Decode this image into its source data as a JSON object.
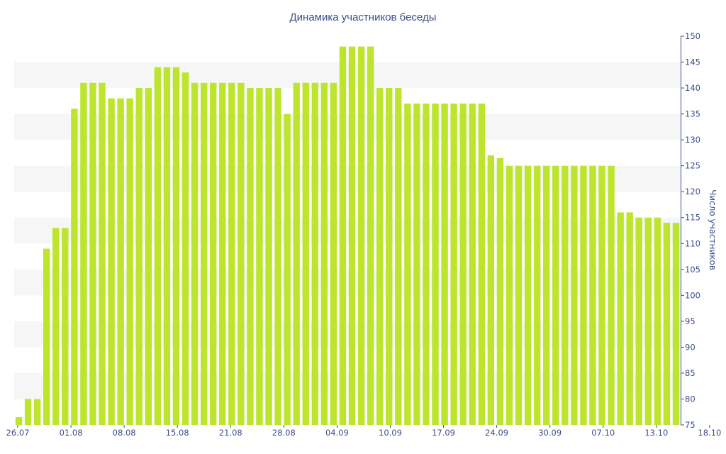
{
  "chart_data": {
    "type": "bar",
    "title": "Динамика участников беседы",
    "xlabel": "",
    "ylabel": "Число участников",
    "ylim": [
      75,
      150
    ],
    "yticks": [
      75,
      80,
      85,
      90,
      95,
      100,
      105,
      110,
      115,
      120,
      125,
      130,
      135,
      140,
      145,
      150
    ],
    "y_axis_position": "right",
    "grid": "alternating horizontal bands",
    "legend": "none",
    "colors": {
      "bar": "#bde52d",
      "text": "#3b4f8a",
      "band": "#f6f6f6",
      "axis": "#3b4f8a"
    },
    "x_tick_labels": [
      "26.07",
      "01.08",
      "08.08",
      "15.08",
      "21.08",
      "28.08",
      "04.09",
      "10.09",
      "17.09",
      "24.09",
      "30.09",
      "07.10",
      "13.10",
      "18.10"
    ],
    "values": [
      76.5,
      80,
      80,
      109,
      113,
      113,
      136,
      141,
      141,
      141,
      138,
      138,
      138,
      140,
      140,
      144,
      144,
      144,
      143,
      141,
      141,
      141,
      141,
      141,
      141,
      140,
      140,
      140,
      140,
      135,
      141,
      141,
      141,
      141,
      141,
      148,
      148,
      148,
      148,
      140,
      140,
      140,
      137,
      137,
      137,
      137,
      137,
      137,
      137,
      137,
      137,
      127,
      126.5,
      125,
      125,
      125,
      125,
      125,
      125,
      125,
      125,
      125,
      125,
      125,
      125,
      116,
      116,
      115,
      115,
      115,
      114,
      114
    ]
  }
}
